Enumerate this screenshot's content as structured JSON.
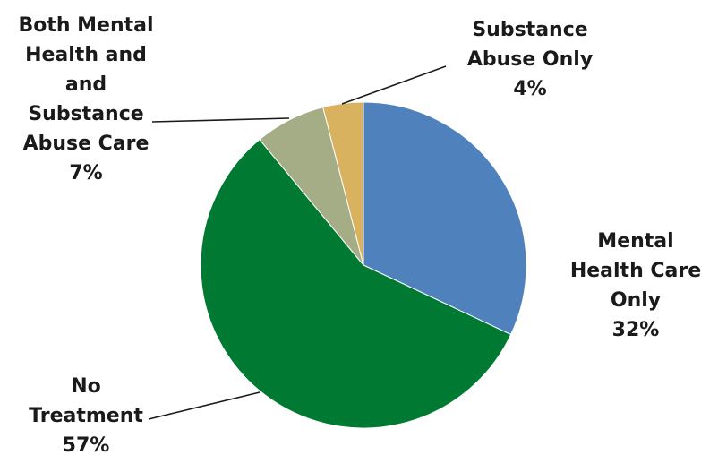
{
  "chart_data": {
    "type": "pie",
    "start_angle_deg": 0,
    "direction": "clockwise",
    "slices": [
      {
        "lines": [
          "Mental",
          "Health Care",
          "Only"
        ],
        "pct_label": "32%",
        "value": 32,
        "color": "#4f81bd"
      },
      {
        "lines": [
          "No",
          "Treatment"
        ],
        "pct_label": "57%",
        "value": 57,
        "color": "#007a33"
      },
      {
        "lines": [
          "Both Mental",
          "Health and",
          "and",
          "Substance",
          "Abuse Care"
        ],
        "pct_label": "7%",
        "value": 7,
        "color": "#a5ad86"
      },
      {
        "lines": [
          "Substance",
          "Abuse Only"
        ],
        "pct_label": "4%",
        "value": 4,
        "color": "#d9b25f"
      }
    ]
  }
}
